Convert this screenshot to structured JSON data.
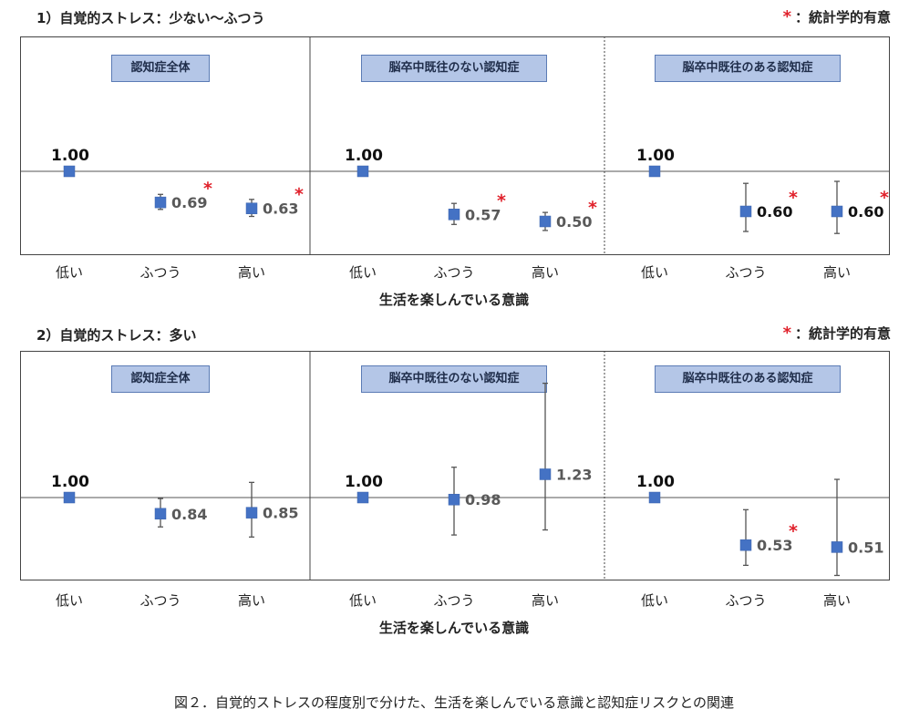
{
  "sig_note": {
    "star": "*",
    "text": "：統計学的有意"
  },
  "caption": "図２．自覚的ストレスの程度別で分けた、生活を楽しんでいる意識と認知症リスクとの関連",
  "chart_data": [
    {
      "type": "scatter",
      "section_title": "1）自覚的ストレス：少ない～ふつう",
      "xlabel": "生活を楽しんでいる意識",
      "categories": [
        "低い",
        "ふつう",
        "高い"
      ],
      "reference_value": 1.0,
      "ylim": [
        0.25,
        1.55
      ],
      "panels": [
        {
          "title": "認知症全体",
          "values": [
            1.0,
            0.69,
            0.63
          ],
          "labels": [
            "1.00",
            "0.69",
            "0.63"
          ],
          "ci_low": [
            1.0,
            0.62,
            0.55
          ],
          "ci_high": [
            1.0,
            0.77,
            0.72
          ],
          "significant": [
            false,
            true,
            true
          ],
          "bold_labels": [
            true,
            false,
            false
          ]
        },
        {
          "title": "脳卒中既往のない認知症",
          "values": [
            1.0,
            0.57,
            0.5
          ],
          "labels": [
            "1.00",
            "0.57",
            "0.50"
          ],
          "ci_low": [
            1.0,
            0.47,
            0.41
          ],
          "ci_high": [
            1.0,
            0.68,
            0.59
          ],
          "significant": [
            false,
            true,
            true
          ],
          "bold_labels": [
            true,
            false,
            false
          ]
        },
        {
          "title": "脳卒中既往のある認知症",
          "values": [
            1.0,
            0.6,
            0.6
          ],
          "labels": [
            "1.00",
            "0.60",
            "0.60"
          ],
          "ci_low": [
            1.0,
            0.4,
            0.38
          ],
          "ci_high": [
            1.0,
            0.88,
            0.9
          ],
          "significant": [
            false,
            true,
            true
          ],
          "bold_labels": [
            true,
            true,
            true
          ]
        }
      ]
    },
    {
      "type": "scatter",
      "section_title": "2）自覚的ストレス：多い",
      "xlabel": "生活を楽しんでいる意識",
      "categories": [
        "低い",
        "ふつう",
        "高い"
      ],
      "reference_value": 1.0,
      "ylim": [
        0.0,
        2.0
      ],
      "panels": [
        {
          "title": "認知症全体",
          "values": [
            1.0,
            0.84,
            0.85
          ],
          "labels": [
            "1.00",
            "0.84",
            "0.85"
          ],
          "ci_low": [
            1.0,
            0.71,
            0.61
          ],
          "ci_high": [
            1.0,
            0.99,
            1.15
          ],
          "significant": [
            false,
            false,
            false
          ],
          "bold_labels": [
            true,
            false,
            false
          ]
        },
        {
          "title": "脳卒中既往のない認知症",
          "values": [
            1.0,
            0.98,
            1.23
          ],
          "labels": [
            "1.00",
            "0.98",
            "1.23"
          ],
          "ci_low": [
            1.0,
            0.63,
            0.68
          ],
          "ci_high": [
            1.0,
            1.3,
            2.13
          ],
          "significant": [
            false,
            false,
            false
          ],
          "bold_labels": [
            true,
            false,
            false
          ]
        },
        {
          "title": "脳卒中既往のある認知症",
          "values": [
            1.0,
            0.53,
            0.51
          ],
          "labels": [
            "1.00",
            "0.53",
            "0.51"
          ],
          "ci_low": [
            1.0,
            0.33,
            0.23
          ],
          "ci_high": [
            1.0,
            0.88,
            1.18
          ],
          "significant": [
            false,
            true,
            false
          ],
          "bold_labels": [
            true,
            false,
            false
          ]
        }
      ]
    }
  ]
}
